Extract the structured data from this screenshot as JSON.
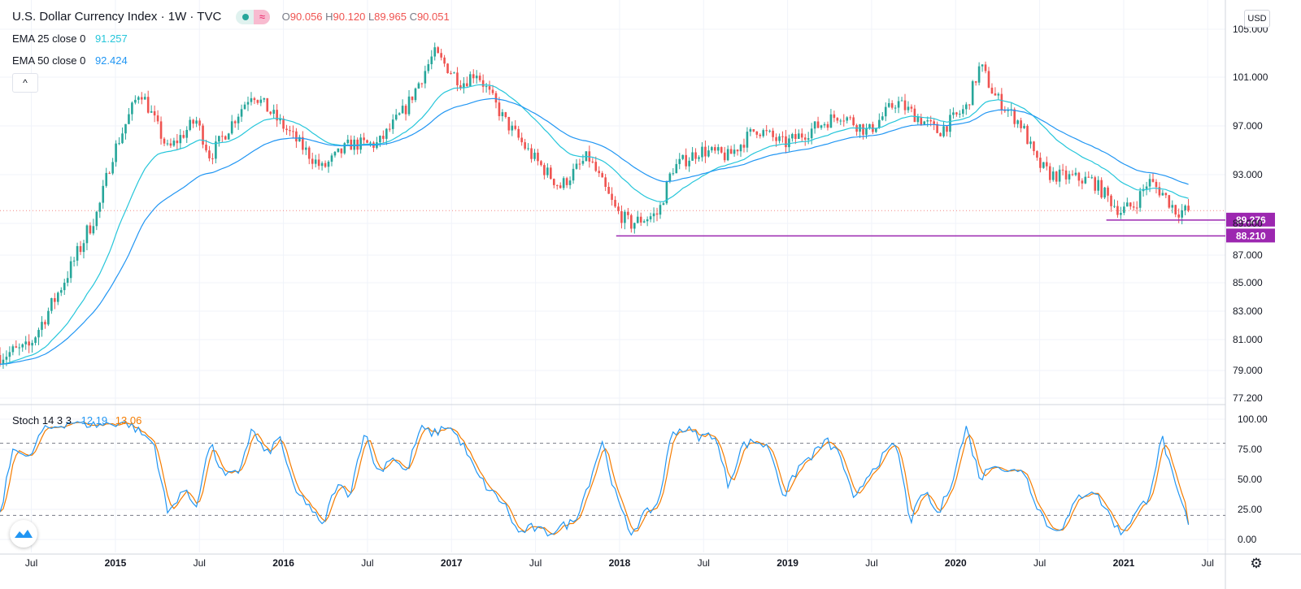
{
  "header": {
    "title": "U.S. Dollar Currency Index · 1W · TVC",
    "ohlc": [
      {
        "key": "O",
        "value": "90.056"
      },
      {
        "key": "H",
        "value": "90.120"
      },
      {
        "key": "L",
        "value": "89.965"
      },
      {
        "key": "C",
        "value": "90.051"
      }
    ]
  },
  "indicators": {
    "ema25": {
      "label": "EMA 25 close 0",
      "value": "91.257",
      "color": "#26c6da"
    },
    "ema50": {
      "label": "EMA 50 close 0",
      "value": "92.424",
      "color": "#2196f3"
    },
    "stoch": {
      "label": "Stoch 14 3 3",
      "k_value": "12.19",
      "d_value": "13.06",
      "k_color": "#2196f3",
      "d_color": "#f57c00"
    }
  },
  "controls": {
    "collapse_icon": "chevron-up-icon",
    "collapse_glyph": "^",
    "currency": "USD",
    "settings_icon": "gear-icon",
    "settings_glyph": "⚙",
    "logo_icon": "tradingview-logo-icon"
  },
  "colors": {
    "up": "#26a69a",
    "down": "#ef5350",
    "support_line": "#9c27b0",
    "grid": "#f0f3fa",
    "axis_text": "#131722"
  },
  "chart_data": [
    {
      "type": "candlestick",
      "title": "U.S. Dollar Currency Index",
      "interval": "1W",
      "x_ticks": [
        "Jul",
        "2015",
        "Jul",
        "2016",
        "Jul",
        "2017",
        "Jul",
        "2018",
        "Jul",
        "2019",
        "Jul",
        "2020",
        "Jul",
        "2021",
        "Jul"
      ],
      "x_tick_bold": [
        false,
        true,
        false,
        true,
        false,
        true,
        false,
        true,
        false,
        true,
        false,
        true,
        false,
        true,
        false
      ],
      "x_tick_dates": [
        "2014-07",
        "2015-01",
        "2015-07",
        "2016-01",
        "2016-07",
        "2017-01",
        "2017-07",
        "2018-01",
        "2018-07",
        "2019-01",
        "2019-07",
        "2020-01",
        "2020-07",
        "2021-01",
        "2021-07"
      ],
      "y_ticks": [
        "105.000",
        "101.000",
        "97.000",
        "93.000",
        "89.000",
        "87.000",
        "85.000",
        "83.000",
        "81.000",
        "79.000",
        "77.200"
      ],
      "y_tick_values": [
        105.0,
        101.0,
        97.0,
        93.0,
        89.0,
        87.0,
        85.0,
        83.0,
        81.0,
        79.0,
        77.2
      ],
      "ylim": [
        77.2,
        105.0
      ],
      "price_key_points": [
        [
          "2014-05",
          80.0
        ],
        [
          "2014-07",
          80.4
        ],
        [
          "2014-09",
          84.0
        ],
        [
          "2014-11",
          88.0
        ],
        [
          "2014-12",
          90.0
        ],
        [
          "2015-01",
          94.5
        ],
        [
          "2015-03",
          100.0
        ],
        [
          "2015-05",
          95.0
        ],
        [
          "2015-07",
          97.5
        ],
        [
          "2015-08",
          94.5
        ],
        [
          "2015-11",
          99.8
        ],
        [
          "2015-12",
          98.5
        ],
        [
          "2016-02",
          96.0
        ],
        [
          "2016-04",
          93.5
        ],
        [
          "2016-06",
          95.5
        ],
        [
          "2016-08",
          95.5
        ],
        [
          "2016-10",
          98.5
        ],
        [
          "2016-12",
          103.0
        ],
        [
          "2017-02",
          100.5
        ],
        [
          "2017-03",
          101.5
        ],
        [
          "2017-05",
          97.5
        ],
        [
          "2017-07",
          94.5
        ],
        [
          "2017-09",
          92.0
        ],
        [
          "2017-11",
          94.5
        ],
        [
          "2018-01",
          90.0
        ],
        [
          "2018-02",
          89.0
        ],
        [
          "2018-04",
          89.8
        ],
        [
          "2018-05",
          93.5
        ],
        [
          "2018-07",
          95.0
        ],
        [
          "2018-09",
          94.5
        ],
        [
          "2018-11",
          96.8
        ],
        [
          "2019-01",
          95.5
        ],
        [
          "2019-05",
          98.0
        ],
        [
          "2019-07",
          96.5
        ],
        [
          "2019-09",
          99.0
        ],
        [
          "2019-12",
          96.5
        ],
        [
          "2020-02",
          98.5
        ],
        [
          "2020-03",
          102.0
        ],
        [
          "2020-04",
          99.5
        ],
        [
          "2020-06",
          97.0
        ],
        [
          "2020-07",
          94.0
        ],
        [
          "2020-08",
          93.0
        ],
        [
          "2020-11",
          92.5
        ],
        [
          "2021-01",
          90.0
        ],
        [
          "2021-02",
          90.5
        ],
        [
          "2021-03",
          92.5
        ],
        [
          "2021-04",
          91.5
        ],
        [
          "2021-05",
          90.0
        ],
        [
          "2021-06",
          90.05
        ]
      ],
      "series": [
        {
          "name": "EMA 25 close 0",
          "last": 91.257,
          "color": "#26c6da"
        },
        {
          "name": "EMA 50 close 0",
          "last": 92.424,
          "color": "#2196f3"
        }
      ],
      "support_levels": [
        {
          "value": 89.276,
          "label": "89.276",
          "from": "2020-12"
        },
        {
          "value": 88.21,
          "label": "88.210",
          "from": "2018-01"
        }
      ],
      "last_price": 90.051
    },
    {
      "type": "line",
      "title": "Stoch 14 3 3",
      "y_ticks": [
        "100.00",
        "75.00",
        "50.00",
        "25.00",
        "0.00"
      ],
      "y_tick_values": [
        100,
        75,
        50,
        25,
        0
      ],
      "ylim": [
        -6,
        108
      ],
      "levels": [
        80,
        20
      ],
      "stoch_key_points": [
        [
          "2014-05",
          20
        ],
        [
          "2014-06",
          80
        ],
        [
          "2014-07",
          65
        ],
        [
          "2014-08",
          90
        ],
        [
          "2014-10",
          98
        ],
        [
          "2014-12",
          95
        ],
        [
          "2015-02",
          98
        ],
        [
          "2015-04",
          80
        ],
        [
          "2015-05",
          20
        ],
        [
          "2015-06",
          42
        ],
        [
          "2015-07",
          28
        ],
        [
          "2015-08",
          80
        ],
        [
          "2015-09",
          52
        ],
        [
          "2015-10",
          55
        ],
        [
          "2015-11",
          92
        ],
        [
          "2015-12",
          70
        ],
        [
          "2016-01",
          85
        ],
        [
          "2016-02",
          40
        ],
        [
          "2016-03",
          30
        ],
        [
          "2016-04",
          10
        ],
        [
          "2016-05",
          45
        ],
        [
          "2016-06",
          38
        ],
        [
          "2016-07",
          90
        ],
        [
          "2016-08",
          55
        ],
        [
          "2016-09",
          70
        ],
        [
          "2016-10",
          55
        ],
        [
          "2016-11",
          92
        ],
        [
          "2016-12",
          88
        ],
        [
          "2017-01",
          95
        ],
        [
          "2017-02",
          80
        ],
        [
          "2017-03",
          55
        ],
        [
          "2017-04",
          40
        ],
        [
          "2017-05",
          30
        ],
        [
          "2017-06",
          5
        ],
        [
          "2017-07",
          10
        ],
        [
          "2017-08",
          5
        ],
        [
          "2017-09",
          10
        ],
        [
          "2017-10",
          15
        ],
        [
          "2017-11",
          45
        ],
        [
          "2017-12",
          82
        ],
        [
          "2018-01",
          35
        ],
        [
          "2018-02",
          5
        ],
        [
          "2018-03",
          20
        ],
        [
          "2018-04",
          30
        ],
        [
          "2018-05",
          90
        ],
        [
          "2018-06",
          92
        ],
        [
          "2018-07",
          85
        ],
        [
          "2018-08",
          88
        ],
        [
          "2018-09",
          45
        ],
        [
          "2018-10",
          78
        ],
        [
          "2018-11",
          82
        ],
        [
          "2018-12",
          75
        ],
        [
          "2019-01",
          35
        ],
        [
          "2019-02",
          60
        ],
        [
          "2019-03",
          70
        ],
        [
          "2019-04",
          82
        ],
        [
          "2019-05",
          70
        ],
        [
          "2019-06",
          30
        ],
        [
          "2019-07",
          55
        ],
        [
          "2019-08",
          68
        ],
        [
          "2019-09",
          80
        ],
        [
          "2019-10",
          15
        ],
        [
          "2019-11",
          40
        ],
        [
          "2019-12",
          20
        ],
        [
          "2020-01",
          50
        ],
        [
          "2020-02",
          93
        ],
        [
          "2020-03",
          50
        ],
        [
          "2020-04",
          65
        ],
        [
          "2020-05",
          55
        ],
        [
          "2020-06",
          60
        ],
        [
          "2020-07",
          30
        ],
        [
          "2020-08",
          8
        ],
        [
          "2020-09",
          12
        ],
        [
          "2020-10",
          35
        ],
        [
          "2020-11",
          42
        ],
        [
          "2020-12",
          25
        ],
        [
          "2021-01",
          5
        ],
        [
          "2021-02",
          20
        ],
        [
          "2021-03",
          35
        ],
        [
          "2021-04",
          85
        ],
        [
          "2021-05",
          40
        ],
        [
          "2021-06",
          12.19
        ]
      ]
    }
  ]
}
